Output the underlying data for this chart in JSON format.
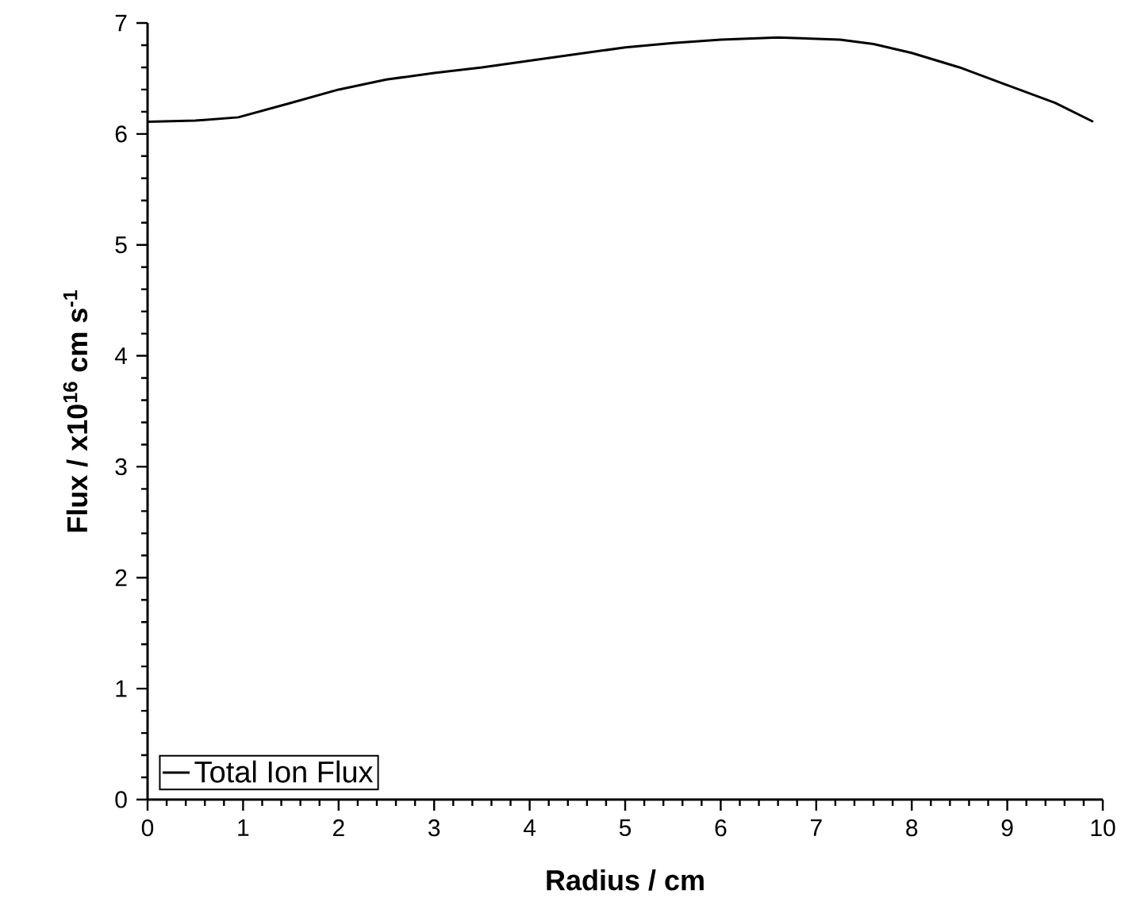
{
  "chart_data": {
    "type": "line",
    "xlabel": "Radius / cm",
    "ylabel": "Flux / x10$^{16}$ cm s$^{-1}$",
    "legend": "bottom left",
    "xlim": [
      0,
      10
    ],
    "ylim": [
      0,
      7
    ],
    "xticks": [
      0,
      1,
      2,
      3,
      4,
      5,
      6,
      7,
      8,
      9,
      10
    ],
    "yticks": [
      0,
      1,
      2,
      3,
      4,
      5,
      6,
      7
    ],
    "x": [
      0,
      0.5,
      0.95,
      1.5,
      2.0,
      2.5,
      3.0,
      3.5,
      4.0,
      4.5,
      5.0,
      5.5,
      6.0,
      6.6,
      7.25,
      7.6,
      8.0,
      8.5,
      9.0,
      9.5,
      9.9
    ],
    "series": [
      {
        "name": "Total Ion Flux",
        "color": "#000000",
        "values": [
          6.11,
          6.12,
          6.15,
          6.28,
          6.4,
          6.49,
          6.55,
          6.6,
          6.66,
          6.72,
          6.78,
          6.82,
          6.85,
          6.87,
          6.85,
          6.81,
          6.73,
          6.6,
          6.44,
          6.28,
          6.11
        ]
      }
    ]
  }
}
